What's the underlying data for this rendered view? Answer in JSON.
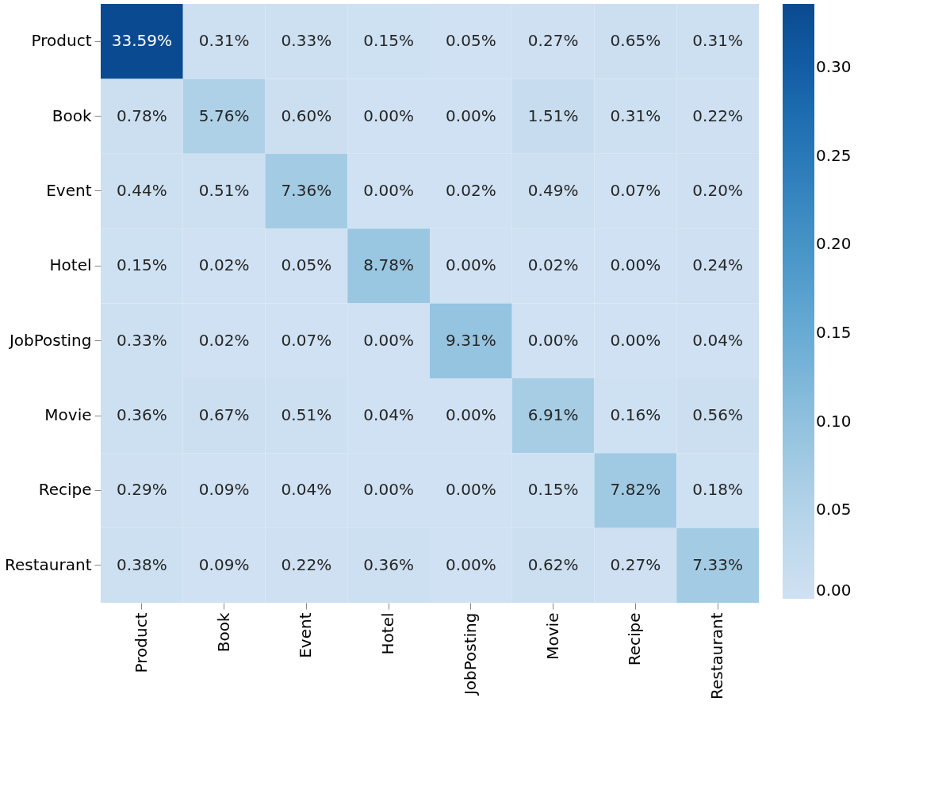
{
  "chart_data": {
    "type": "heatmap",
    "categories": [
      "Product",
      "Book",
      "Event",
      "Hotel",
      "JobPosting",
      "Movie",
      "Recipe",
      "Restaurant"
    ],
    "y_categories": [
      "Product",
      "Book",
      "Event",
      "Hotel",
      "JobPosting",
      "Movie",
      "Recipe",
      "Restaurant"
    ],
    "cells": [
      [
        0.3359,
        0.0031,
        0.0033,
        0.0015,
        0.0005,
        0.0027,
        0.0065,
        0.0031
      ],
      [
        0.0078,
        0.0576,
        0.006,
        0,
        0,
        0.0151,
        0.0031,
        0.0022
      ],
      [
        0.0044,
        0.0051,
        0.0736,
        0,
        0.0002,
        0.0049,
        0.0007,
        0.002
      ],
      [
        0.0015,
        0.0002,
        0.0005,
        0.0878,
        0,
        0.0002,
        0,
        0.0024
      ],
      [
        0.0033,
        0.0002,
        0.0007,
        0,
        0.0931,
        0,
        0,
        0.0004
      ],
      [
        0.0036,
        0.0067,
        0.0051,
        0.0004,
        0,
        0.0691,
        0.0016,
        0.0056
      ],
      [
        0.0029,
        0.0009,
        0.0004,
        0,
        0,
        0.0015,
        0.0782,
        0.0018
      ],
      [
        0.0038,
        0.0009,
        0.0022,
        0.0036,
        0,
        0.0062,
        0.0027,
        0.0733
      ]
    ],
    "cell_labels": [
      [
        "33.59%",
        "0.31%",
        "0.33%",
        "0.15%",
        "0.05%",
        "0.27%",
        "0.65%",
        "0.31%"
      ],
      [
        "0.78%",
        "5.76%",
        "0.60%",
        "0.00%",
        "0.00%",
        "1.51%",
        "0.31%",
        "0.22%"
      ],
      [
        "0.44%",
        "0.51%",
        "7.36%",
        "0.00%",
        "0.02%",
        "0.49%",
        "0.07%",
        "0.20%"
      ],
      [
        "0.15%",
        "0.02%",
        "0.05%",
        "8.78%",
        "0.00%",
        "0.02%",
        "0.00%",
        "0.24%"
      ],
      [
        "0.33%",
        "0.02%",
        "0.07%",
        "0.00%",
        "9.31%",
        "0.00%",
        "0.00%",
        "0.04%"
      ],
      [
        "0.36%",
        "0.67%",
        "0.51%",
        "0.04%",
        "0.00%",
        "6.91%",
        "0.16%",
        "0.56%"
      ],
      [
        "0.29%",
        "0.09%",
        "0.04%",
        "0.00%",
        "0.00%",
        "0.15%",
        "7.82%",
        "0.18%"
      ],
      [
        "0.38%",
        "0.09%",
        "0.22%",
        "0.36%",
        "0.00%",
        "0.62%",
        "0.27%",
        "7.33%"
      ]
    ],
    "clim": [
      0,
      0.3359
    ],
    "cticks": [
      {
        "value": 0,
        "label": "0.00"
      },
      {
        "value": 0.05,
        "label": "0.05"
      },
      {
        "value": 0.1,
        "label": "0.10"
      },
      {
        "value": 0.15,
        "label": "0.15"
      },
      {
        "value": 0.2,
        "label": "0.20"
      },
      {
        "value": 0.25,
        "label": "0.25"
      },
      {
        "value": 0.3,
        "label": "0.30"
      }
    ]
  }
}
